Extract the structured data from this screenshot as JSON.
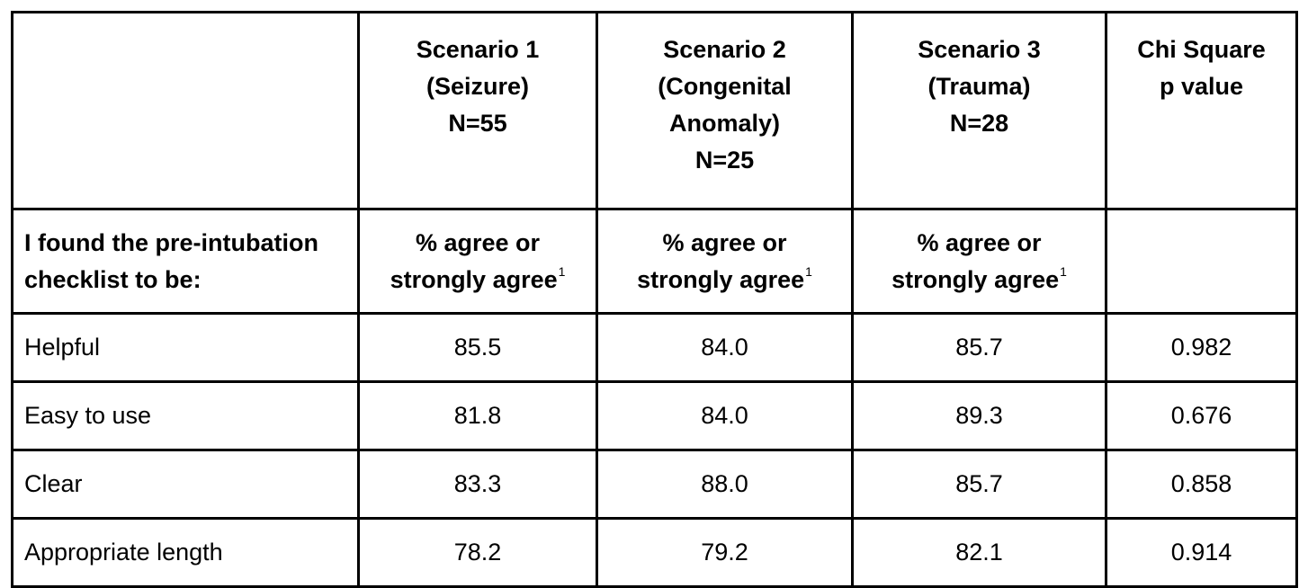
{
  "table": {
    "header": {
      "corner": "",
      "columns": [
        {
          "lines": [
            "Scenario 1",
            "(Seizure)",
            "N=55"
          ]
        },
        {
          "lines": [
            "Scenario 2",
            "(Congenital",
            "Anomaly)",
            "N=25"
          ]
        },
        {
          "lines": [
            "Scenario 3",
            "(Trauma)",
            "N=28"
          ]
        },
        {
          "lines": [
            "Chi Square",
            "p value"
          ]
        }
      ]
    },
    "subheader": {
      "label_lines": [
        "I found the pre-intubation",
        "checklist to be:"
      ],
      "cells": [
        {
          "line1": "% agree or",
          "line2": "strongly agree",
          "footnote": "1"
        },
        {
          "line1": "% agree or",
          "line2": "strongly agree",
          "footnote": "1"
        },
        {
          "line1": "% agree or",
          "line2": "strongly agree",
          "footnote": "1"
        },
        {
          "line1": "",
          "line2": "",
          "footnote": ""
        }
      ]
    },
    "rows": [
      {
        "label": "Helpful",
        "values": [
          "85.5",
          "84.0",
          "85.7",
          "0.982"
        ]
      },
      {
        "label": "Easy to use",
        "values": [
          "81.8",
          "84.0",
          "89.3",
          "0.676"
        ]
      },
      {
        "label": "Clear",
        "values": [
          "83.3",
          "88.0",
          "85.7",
          "0.858"
        ]
      },
      {
        "label": "Appropriate length",
        "values": [
          "78.2",
          "79.2",
          "82.1",
          "0.914"
        ]
      }
    ]
  }
}
